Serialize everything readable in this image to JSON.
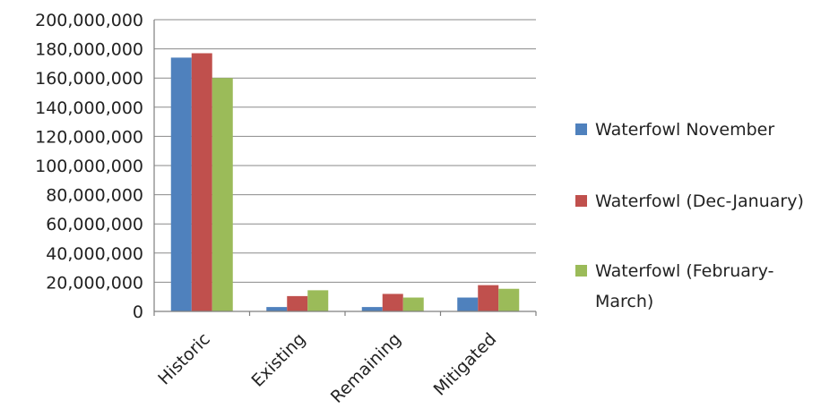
{
  "chart_data": {
    "type": "bar",
    "title": "",
    "xlabel": "",
    "ylabel": "",
    "categories": [
      "Historic",
      "Existing",
      "Remaining",
      "Mitigated"
    ],
    "series": [
      {
        "name": "Waterfowl November",
        "color": "#4F81BD",
        "values": [
          174000000,
          3000000,
          3000000,
          9500000
        ]
      },
      {
        "name": "Waterfowl (Dec-January)",
        "color": "#C0504D",
        "values": [
          177000000,
          10500000,
          12000000,
          18000000
        ]
      },
      {
        "name": "Waterfowl (February-March)",
        "color": "#9BBB59",
        "values": [
          160000000,
          14500000,
          9500000,
          15500000
        ]
      }
    ],
    "ylim": [
      0,
      200000000
    ],
    "yticks": [
      0,
      20000000,
      40000000,
      60000000,
      80000000,
      100000000,
      120000000,
      140000000,
      160000000,
      180000000,
      200000000
    ],
    "ytick_labels": [
      "0",
      "20,000,000",
      "40,000,000",
      "60,000,000",
      "80,000,000",
      "100,000,000",
      "120,000,000",
      "140,000,000",
      "160,000,000",
      "180,000,000",
      "200,000,000"
    ],
    "grid": true,
    "legend": {
      "placement": "right",
      "entries": [
        {
          "lines": [
            "Waterfowl November"
          ]
        },
        {
          "lines": [
            "Waterfowl (Dec-January)"
          ]
        },
        {
          "lines": [
            "Waterfowl (February-",
            "March)"
          ]
        }
      ]
    }
  }
}
